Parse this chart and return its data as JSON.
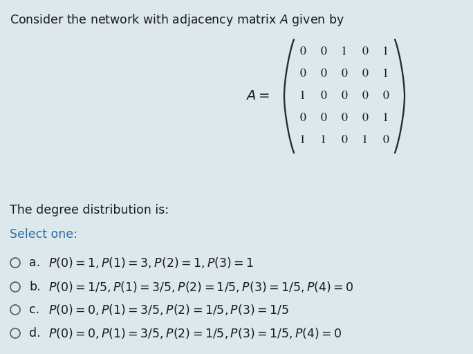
{
  "background_color": "#dde8ec",
  "title_text": "Consider the network with adjacency matrix $\\mathit{A}$ given by",
  "title_fontsize": 12.5,
  "matrix_rows": [
    [
      "0",
      "0",
      "1",
      "0",
      "1"
    ],
    [
      "0",
      "0",
      "0",
      "0",
      "1"
    ],
    [
      "1",
      "0",
      "0",
      "0",
      "0"
    ],
    [
      "0",
      "0",
      "0",
      "0",
      "1"
    ],
    [
      "1",
      "1",
      "0",
      "1",
      "0"
    ]
  ],
  "subtitle": "The degree distribution is:",
  "select_one": "Select one:",
  "select_one_color": "#2e6da4",
  "options": [
    {
      "letter": "a.",
      "text": "$P(0) = 1, P(1) = 3, P(2) = 1, P(3) = 1$"
    },
    {
      "letter": "b.",
      "text": "$P(0) = 1/5, P(1) = 3/5, P(2) = 1/5, P(3) = 1/5, P(4) = 0$"
    },
    {
      "letter": "c.",
      "text": "$P(0) = 0, P(1) = 3/5, P(2) = 1/5, P(3) = 1/5$"
    },
    {
      "letter": "d.",
      "text": "$P(0) = 0, P(1) = 3/5, P(2) = 1/5, P(3) = 1/5, P(4) = 0$"
    }
  ],
  "text_color": "#1a1a1a",
  "font_size_options": 12.5,
  "font_size_subtitle": 12.5,
  "matrix_fontsize": 13,
  "matrix_label_fontsize": 14
}
